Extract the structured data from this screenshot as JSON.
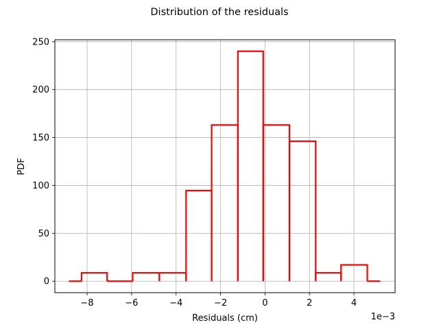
{
  "chart_data": {
    "type": "histogram-step",
    "title": "Distribution of the residuals",
    "xlabel": "Residuals (cm)",
    "ylabel": "PDF",
    "x_offset_label": "1e−3",
    "x_scale_factor": 0.001,
    "xlim": [
      -9.45,
      5.85
    ],
    "ylim": [
      -12,
      252
    ],
    "x_ticks": [
      -8,
      -6,
      -4,
      -2,
      0,
      2,
      4
    ],
    "x_tick_labels": [
      "−8",
      "−6",
      "−4",
      "−2",
      "0",
      "2",
      "4"
    ],
    "y_ticks": [
      0,
      50,
      100,
      150,
      200,
      250
    ],
    "y_tick_labels": [
      "0",
      "50",
      "100",
      "150",
      "200",
      "250"
    ],
    "grid": true,
    "line_color": "#ff0000",
    "bins": [
      {
        "x0": -8.82,
        "x1": -8.25,
        "value": 0
      },
      {
        "x0": -8.25,
        "x1": -7.1,
        "value": 8.7
      },
      {
        "x0": -7.1,
        "x1": -5.95,
        "value": 0
      },
      {
        "x0": -5.95,
        "x1": -4.75,
        "value": 8.7
      },
      {
        "x0": -4.75,
        "x1": -3.55,
        "value": 8.7
      },
      {
        "x0": -3.55,
        "x1": -2.4,
        "value": 94.5
      },
      {
        "x0": -2.4,
        "x1": -1.22,
        "value": 163
      },
      {
        "x0": -1.22,
        "x1": -0.08,
        "value": 240
      },
      {
        "x0": -0.08,
        "x1": 1.1,
        "value": 163
      },
      {
        "x0": 1.1,
        "x1": 2.28,
        "value": 146
      },
      {
        "x0": 2.28,
        "x1": 3.42,
        "value": 8.7
      },
      {
        "x0": 3.42,
        "x1": 4.6,
        "value": 17
      },
      {
        "x0": 4.6,
        "x1": 5.18,
        "value": 0
      }
    ]
  }
}
